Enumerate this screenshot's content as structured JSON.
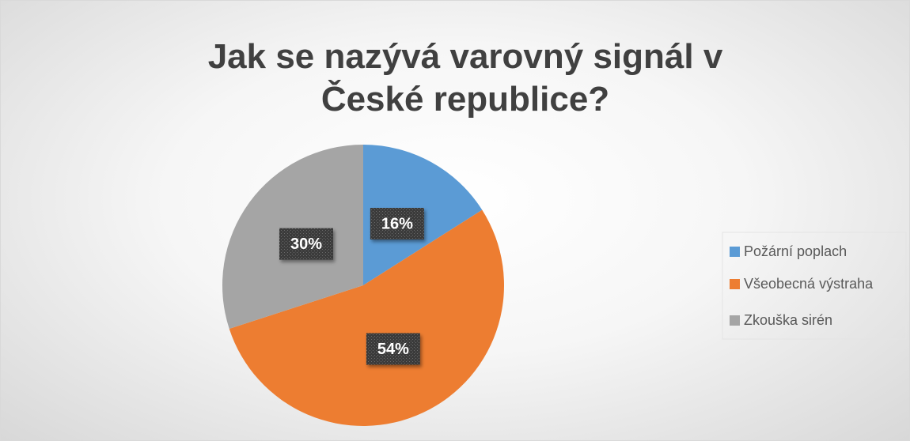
{
  "chart_data": {
    "type": "pie",
    "title": "Jak se nazývá varovný signál v České republice?",
    "categories": [
      "Požární poplach",
      "Všeobecná výstraha",
      "Zkouška sirén"
    ],
    "values": [
      16,
      54,
      30
    ],
    "value_labels": [
      "16%",
      "54%",
      "30%"
    ],
    "colors": [
      "#5b9bd5",
      "#ed7d31",
      "#a5a5a5"
    ],
    "legend": "right"
  }
}
